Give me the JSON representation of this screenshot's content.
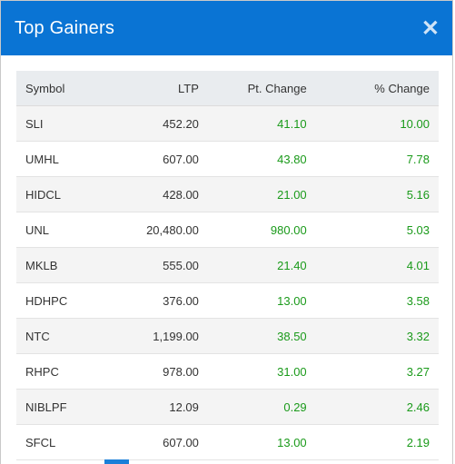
{
  "header": {
    "title": "Top Gainers",
    "close_symbol": "✕"
  },
  "table": {
    "columns": [
      "Symbol",
      "LTP",
      "Pt. Change",
      "% Change"
    ],
    "rows": [
      {
        "symbol": "SLI",
        "ltp": "452.20",
        "pt": "41.10",
        "pct": "10.00"
      },
      {
        "symbol": "UMHL",
        "ltp": "607.00",
        "pt": "43.80",
        "pct": "7.78"
      },
      {
        "symbol": "HIDCL",
        "ltp": "428.00",
        "pt": "21.00",
        "pct": "5.16"
      },
      {
        "symbol": "UNL",
        "ltp": "20,480.00",
        "pt": "980.00",
        "pct": "5.03"
      },
      {
        "symbol": "MKLB",
        "ltp": "555.00",
        "pt": "21.40",
        "pct": "4.01"
      },
      {
        "symbol": "HDHPC",
        "ltp": "376.00",
        "pt": "13.00",
        "pct": "3.58"
      },
      {
        "symbol": "NTC",
        "ltp": "1,199.00",
        "pt": "38.50",
        "pct": "3.32"
      },
      {
        "symbol": "RHPC",
        "ltp": "978.00",
        "pt": "31.00",
        "pct": "3.27"
      },
      {
        "symbol": "NIBLPF",
        "ltp": "12.09",
        "pt": "0.29",
        "pct": "2.46"
      },
      {
        "symbol": "SFCL",
        "ltp": "607.00",
        "pt": "13.00",
        "pct": "2.19"
      }
    ]
  },
  "colors": {
    "header_bg": "#0a74d4",
    "positive": "#1a9a1a",
    "pager_active": "#1a7fd8"
  }
}
